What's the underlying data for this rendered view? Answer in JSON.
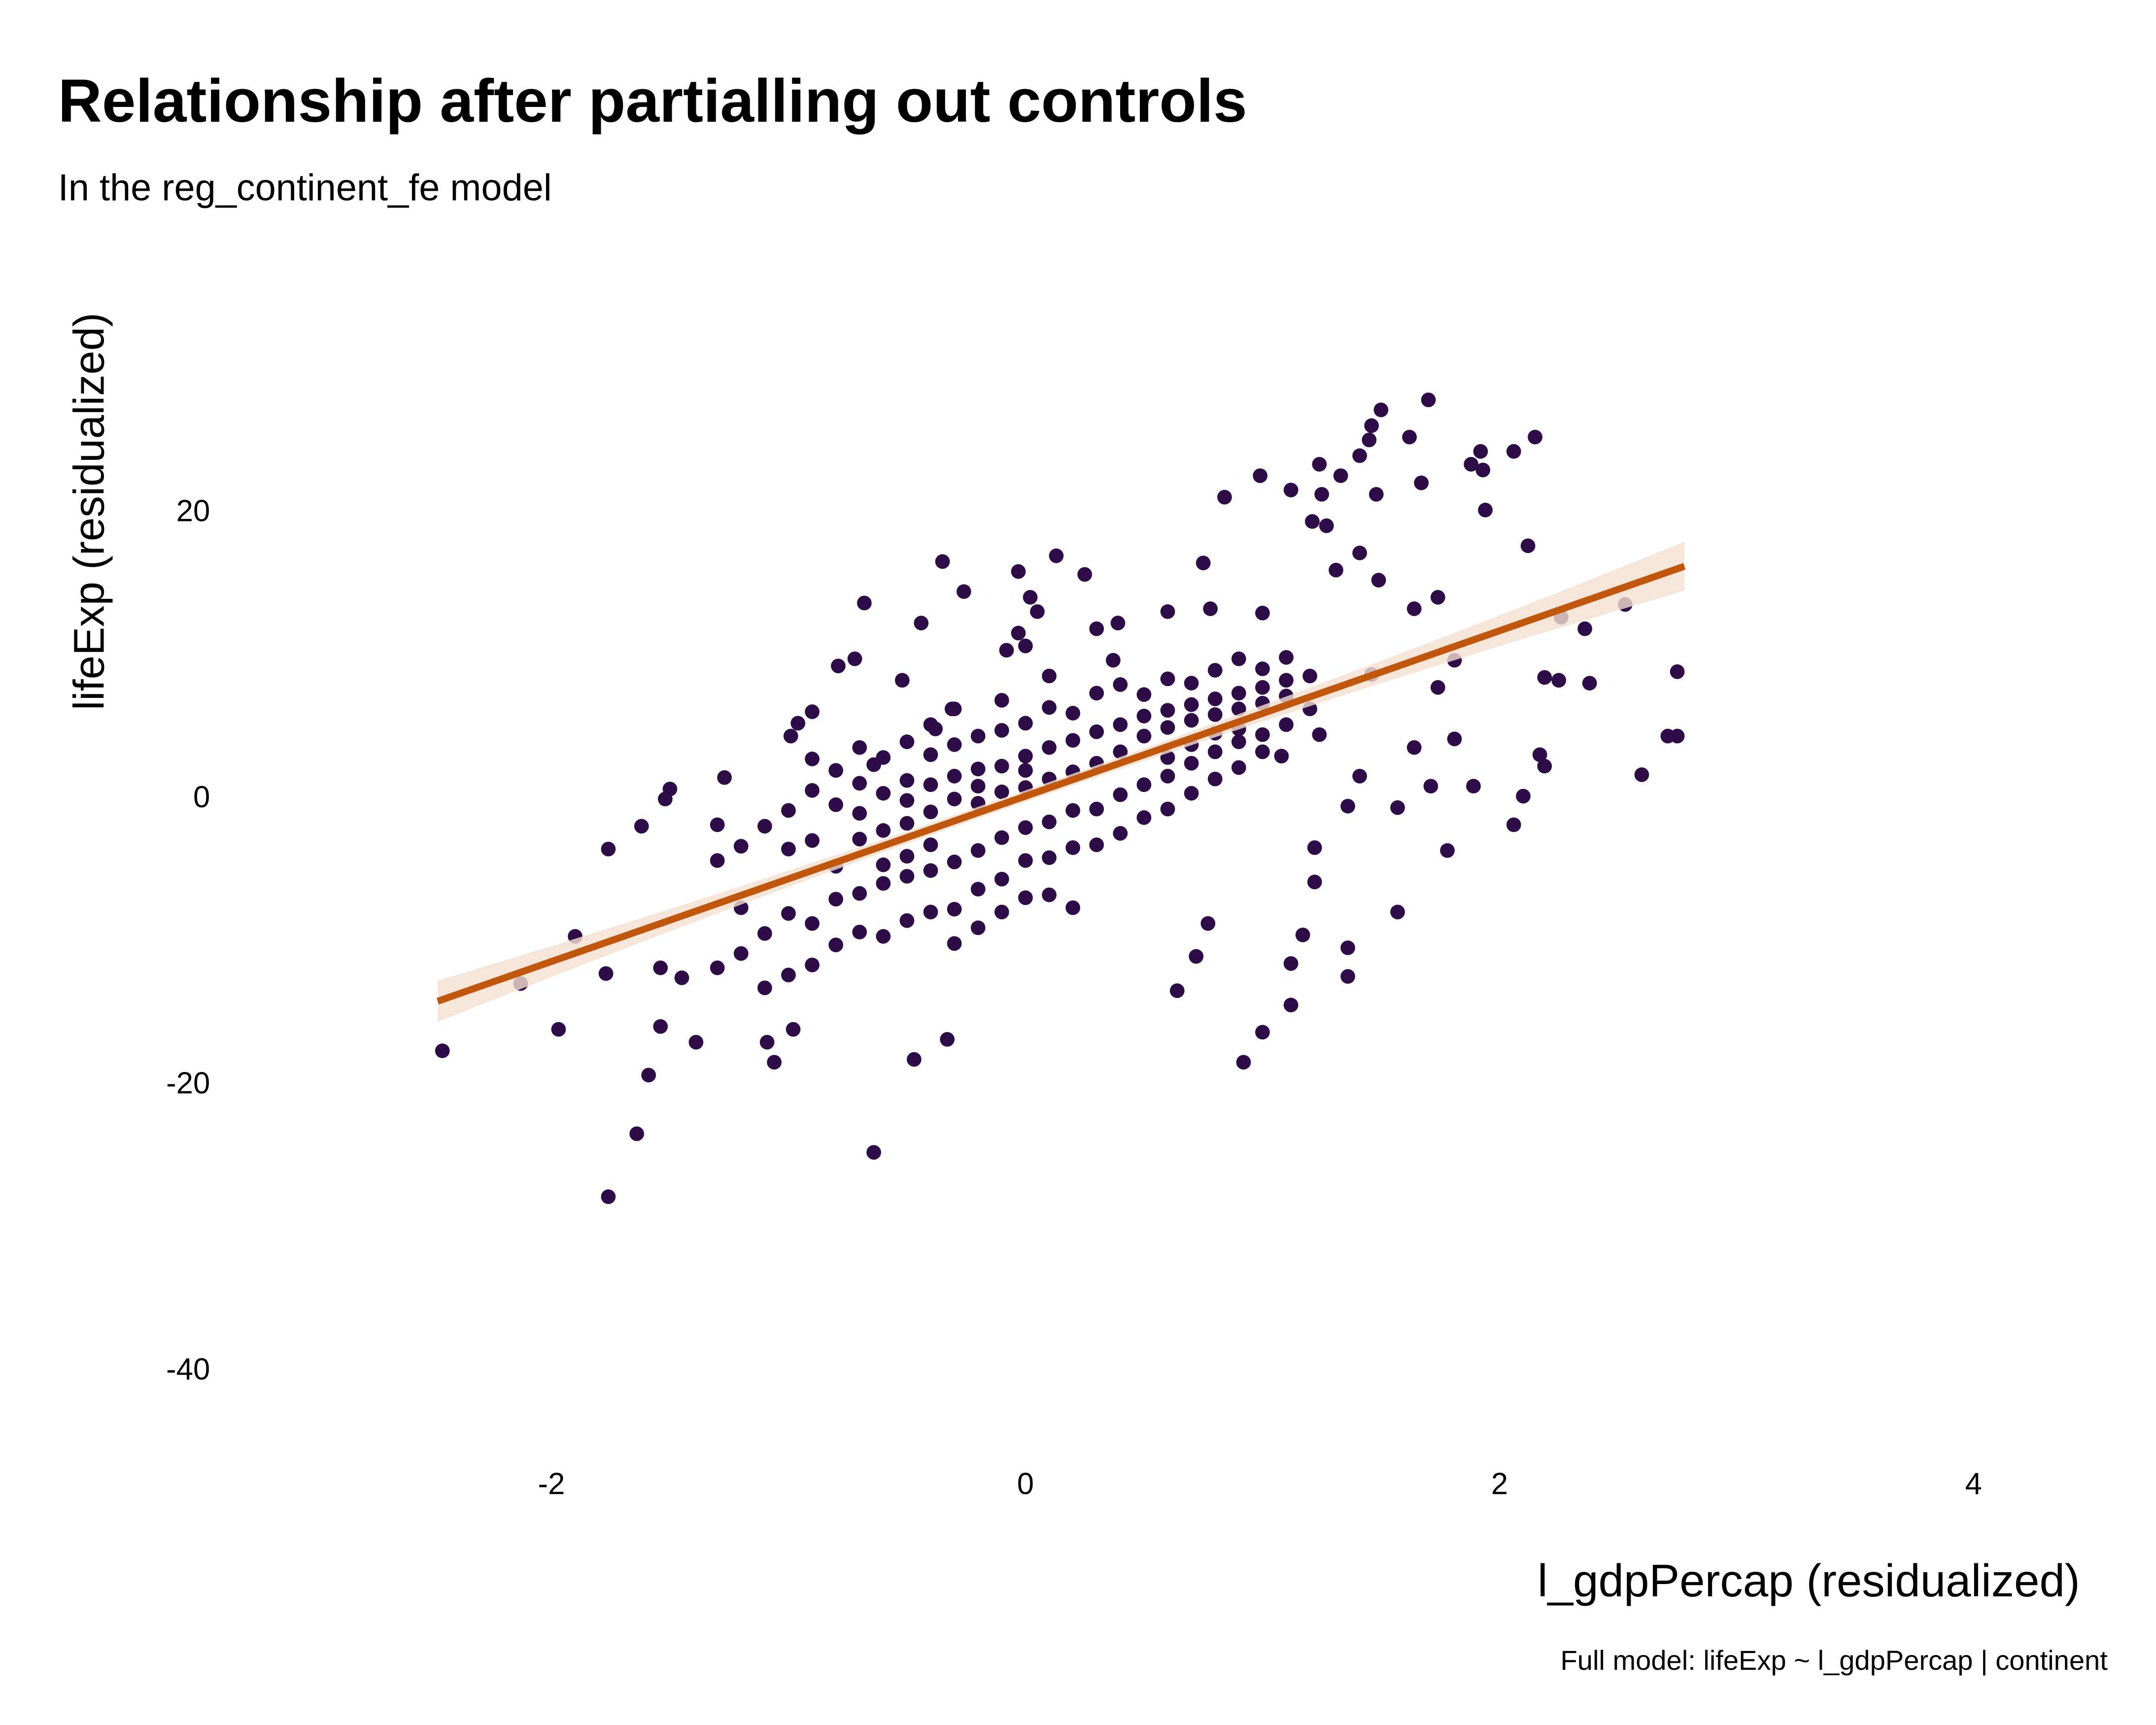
{
  "chart_data": {
    "type": "scatter",
    "title": "Relationship after partialling out controls",
    "subtitle": "In the reg_continent_fe model",
    "xlabel": "l_gdpPercap (residualized)",
    "ylabel": "lifeExp (residualized)",
    "caption": "Full model: lifeExp ~ l_gdpPercap | continent",
    "xlim": [
      -3.0,
      4.5
    ],
    "ylim": [
      -45,
      33
    ],
    "xticks": [
      -2,
      0,
      2,
      4
    ],
    "xtick_labels": [
      "-2",
      "0",
      "2",
      "4"
    ],
    "yticks": [
      20,
      0,
      -20,
      -40
    ],
    "ytick_labels": [
      "20",
      "0",
      "-20",
      "-40"
    ],
    "grid": false,
    "colors": {
      "points": "#2e0c47",
      "fit_line": "#c0570d",
      "ci_band": "#f4e0d0"
    },
    "fit": {
      "intercept": 0.0,
      "slope": 5.78,
      "x_range": [
        -2.48,
        2.78
      ]
    },
    "points": [
      [
        -2.46,
        -17.8
      ],
      [
        -2.13,
        -13.1
      ],
      [
        -1.97,
        -16.3
      ],
      [
        -1.9,
        -9.8
      ],
      [
        -1.76,
        -28.0
      ],
      [
        -1.76,
        -3.7
      ],
      [
        -1.77,
        -12.4
      ],
      [
        -1.64,
        -23.6
      ],
      [
        -1.59,
        -19.5
      ],
      [
        -1.62,
        -2.1
      ],
      [
        -1.54,
        -16.1
      ],
      [
        -1.52,
        -0.2
      ],
      [
        -1.5,
        0.5
      ],
      [
        -1.54,
        -12.0
      ],
      [
        -1.45,
        -12.7
      ],
      [
        -1.39,
        -17.2
      ],
      [
        -1.27,
        1.3
      ],
      [
        -0.64,
        -24.9
      ],
      [
        -0.47,
        -18.4
      ],
      [
        -0.33,
        -17.0
      ],
      [
        -1.06,
        -18.6
      ],
      [
        -1.09,
        -17.2
      ],
      [
        -0.98,
        -16.3
      ],
      [
        -0.68,
        13.5
      ],
      [
        -0.35,
        16.4
      ],
      [
        -0.03,
        15.7
      ],
      [
        0.13,
        16.8
      ],
      [
        0.25,
        15.5
      ],
      [
        -0.26,
        14.3
      ],
      [
        0.84,
        20.9
      ],
      [
        0.99,
        22.4
      ],
      [
        1.46,
        25.9
      ],
      [
        1.5,
        27.0
      ],
      [
        1.7,
        27.7
      ],
      [
        1.62,
        25.1
      ],
      [
        1.67,
        21.9
      ],
      [
        1.88,
        23.2
      ],
      [
        1.92,
        24.1
      ],
      [
        1.93,
        22.8
      ],
      [
        1.94,
        20.0
      ],
      [
        2.06,
        24.1
      ],
      [
        2.15,
        25.1
      ],
      [
        2.12,
        17.5
      ],
      [
        1.21,
        19.2
      ],
      [
        1.27,
        18.9
      ],
      [
        1.25,
        21.1
      ],
      [
        1.12,
        21.4
      ],
      [
        1.24,
        23.2
      ],
      [
        1.33,
        22.4
      ],
      [
        1.41,
        23.8
      ],
      [
        1.45,
        24.9
      ],
      [
        1.48,
        21.1
      ],
      [
        2.53,
        13.4
      ],
      [
        2.36,
        11.7
      ],
      [
        2.26,
        12.5
      ],
      [
        2.19,
        8.3
      ],
      [
        2.25,
        8.1
      ],
      [
        2.38,
        7.9
      ],
      [
        2.75,
        8.7
      ],
      [
        2.71,
        4.2
      ],
      [
        2.75,
        4.2
      ],
      [
        2.6,
        1.5
      ],
      [
        2.17,
        2.9
      ],
      [
        2.19,
        2.1
      ],
      [
        2.1,
        0.0
      ],
      [
        2.06,
        -2.0
      ],
      [
        1.89,
        0.7
      ],
      [
        1.71,
        0.7
      ],
      [
        1.78,
        -3.8
      ],
      [
        1.57,
        -0.8
      ],
      [
        1.57,
        -8.1
      ],
      [
        1.64,
        3.4
      ],
      [
        1.81,
        4.0
      ],
      [
        1.36,
        -0.7
      ],
      [
        1.41,
        1.4
      ],
      [
        1.46,
        8.5
      ],
      [
        1.36,
        -12.6
      ],
      [
        1.36,
        -10.6
      ],
      [
        1.17,
        -9.7
      ],
      [
        1.12,
        -11.7
      ],
      [
        1.12,
        -14.6
      ],
      [
        1.0,
        -16.5
      ],
      [
        0.92,
        -18.6
      ],
      [
        0.72,
        -11.2
      ],
      [
        0.64,
        -13.6
      ],
      [
        0.77,
        -8.9
      ],
      [
        1.22,
        -6.0
      ],
      [
        1.22,
        -3.6
      ],
      [
        1.08,
        2.8
      ],
      [
        1.24,
        4.3
      ],
      [
        1.74,
        7.6
      ],
      [
        1.81,
        9.5
      ],
      [
        1.74,
        13.9
      ],
      [
        1.64,
        13.1
      ],
      [
        1.31,
        15.8
      ],
      [
        1.41,
        17.0
      ],
      [
        1.49,
        15.1
      ],
      [
        0.75,
        16.3
      ],
      [
        0.78,
        13.1
      ],
      [
        1.0,
        12.8
      ],
      [
        0.6,
        12.9
      ],
      [
        0.39,
        12.1
      ],
      [
        0.37,
        9.5
      ],
      [
        0.3,
        11.7
      ],
      [
        0.0,
        10.5
      ],
      [
        -0.08,
        10.2
      ],
      [
        -0.03,
        11.4
      ],
      [
        0.02,
        13.9
      ],
      [
        0.05,
        12.9
      ],
      [
        -0.44,
        12.1
      ],
      [
        -0.52,
        8.1
      ],
      [
        -0.72,
        9.6
      ],
      [
        -0.79,
        9.1
      ],
      [
        -0.9,
        5.9
      ],
      [
        -0.99,
        4.2
      ],
      [
        -0.96,
        5.1
      ],
      [
        -0.64,
        2.2
      ],
      [
        -0.38,
        4.7
      ],
      [
        -0.31,
        6.1
      ],
      [
        -1.3,
        -4.5
      ],
      [
        -1.3,
        -12.0
      ],
      [
        -1.3,
        -2.0
      ],
      [
        -1.2,
        -11.0
      ],
      [
        -1.2,
        -3.5
      ],
      [
        -1.2,
        -7.8
      ],
      [
        -1.1,
        -2.1
      ],
      [
        -1.1,
        -9.6
      ],
      [
        -1.1,
        -13.4
      ],
      [
        -1.0,
        -1.0
      ],
      [
        -1.0,
        -8.2
      ],
      [
        -1.0,
        -12.5
      ],
      [
        -1.0,
        -3.7
      ],
      [
        -0.9,
        0.4
      ],
      [
        -0.9,
        -8.9
      ],
      [
        -0.9,
        -3.1
      ],
      [
        -0.9,
        -11.8
      ],
      [
        -0.9,
        2.6
      ],
      [
        -0.8,
        -0.6
      ],
      [
        -0.8,
        -7.2
      ],
      [
        -0.8,
        -10.4
      ],
      [
        -0.8,
        1.8
      ],
      [
        -0.8,
        -4.9
      ],
      [
        -0.7,
        -1.2
      ],
      [
        -0.7,
        -6.8
      ],
      [
        -0.7,
        3.4
      ],
      [
        -0.7,
        -9.5
      ],
      [
        -0.7,
        -3.0
      ],
      [
        -0.7,
        0.9
      ],
      [
        -0.6,
        -6.1
      ],
      [
        -0.6,
        0.2
      ],
      [
        -0.6,
        -9.8
      ],
      [
        -0.6,
        2.7
      ],
      [
        -0.6,
        -2.4
      ],
      [
        -0.6,
        -4.8
      ],
      [
        -0.5,
        -0.3
      ],
      [
        -0.5,
        -5.6
      ],
      [
        -0.5,
        3.8
      ],
      [
        -0.5,
        -8.7
      ],
      [
        -0.5,
        -1.9
      ],
      [
        -0.5,
        1.1
      ],
      [
        -0.5,
        -4.2
      ],
      [
        -0.4,
        0.8
      ],
      [
        -0.4,
        -5.2
      ],
      [
        -0.4,
        -8.1
      ],
      [
        -0.4,
        2.9
      ],
      [
        -0.4,
        -3.4
      ],
      [
        -0.4,
        5.0
      ],
      [
        -0.4,
        -1.1
      ],
      [
        -0.3,
        -4.6
      ],
      [
        -0.3,
        1.4
      ],
      [
        -0.3,
        -7.9
      ],
      [
        -0.3,
        3.6
      ],
      [
        -0.3,
        -0.2
      ],
      [
        -0.3,
        -10.3
      ],
      [
        -0.3,
        6.1
      ],
      [
        -0.2,
        1.9
      ],
      [
        -0.2,
        -3.8
      ],
      [
        -0.2,
        -6.5
      ],
      [
        -0.2,
        4.2
      ],
      [
        -0.2,
        -0.5
      ],
      [
        -0.2,
        -9.2
      ],
      [
        -0.2,
        0.7
      ],
      [
        -0.1,
        2.1
      ],
      [
        -0.1,
        -2.9
      ],
      [
        -0.1,
        -5.8
      ],
      [
        -0.1,
        4.6
      ],
      [
        -0.1,
        0.3
      ],
      [
        -0.1,
        -8.1
      ],
      [
        -0.1,
        6.7
      ],
      [
        0.0,
        2.8
      ],
      [
        0.0,
        -2.2
      ],
      [
        0.0,
        5.1
      ],
      [
        0.0,
        -4.5
      ],
      [
        0.0,
        0.6
      ],
      [
        0.0,
        -7.1
      ],
      [
        0.0,
        1.8
      ],
      [
        0.1,
        3.4
      ],
      [
        0.1,
        -1.8
      ],
      [
        0.1,
        6.2
      ],
      [
        0.1,
        -4.3
      ],
      [
        0.1,
        1.2
      ],
      [
        0.1,
        -6.9
      ],
      [
        0.1,
        8.4
      ],
      [
        0.2,
        3.9
      ],
      [
        0.2,
        -1.0
      ],
      [
        0.2,
        5.8
      ],
      [
        0.2,
        -3.6
      ],
      [
        0.2,
        1.7
      ],
      [
        0.2,
        -7.8
      ],
      [
        0.3,
        4.5
      ],
      [
        0.3,
        -0.9
      ],
      [
        0.3,
        7.2
      ],
      [
        0.3,
        -3.4
      ],
      [
        0.3,
        2.3
      ],
      [
        0.4,
        5.0
      ],
      [
        0.4,
        0.1
      ],
      [
        0.4,
        7.8
      ],
      [
        0.4,
        -2.6
      ],
      [
        0.4,
        3.1
      ],
      [
        0.5,
        5.6
      ],
      [
        0.5,
        0.8
      ],
      [
        0.5,
        7.1
      ],
      [
        0.5,
        -1.5
      ],
      [
        0.5,
        4.2
      ],
      [
        0.6,
        6.0
      ],
      [
        0.6,
        1.4
      ],
      [
        0.6,
        4.8
      ],
      [
        0.6,
        -0.9
      ],
      [
        0.6,
        8.2
      ],
      [
        0.6,
        2.7
      ],
      [
        0.7,
        6.4
      ],
      [
        0.7,
        2.3
      ],
      [
        0.7,
        5.3
      ],
      [
        0.7,
        0.2
      ],
      [
        0.7,
        7.9
      ],
      [
        0.7,
        3.6
      ],
      [
        0.8,
        6.8
      ],
      [
        0.8,
        3.1
      ],
      [
        0.8,
        5.7
      ],
      [
        0.8,
        1.2
      ],
      [
        0.8,
        8.8
      ],
      [
        0.8,
        4.4
      ],
      [
        0.9,
        7.2
      ],
      [
        0.9,
        3.8
      ],
      [
        0.9,
        6.1
      ],
      [
        0.9,
        2.0
      ],
      [
        0.9,
        9.6
      ],
      [
        0.9,
        4.7
      ],
      [
        1.0,
        7.6
      ],
      [
        1.0,
        4.3
      ],
      [
        1.0,
        6.5
      ],
      [
        1.0,
        8.9
      ],
      [
        1.0,
        3.1
      ],
      [
        1.1,
        8.1
      ],
      [
        1.1,
        5.0
      ],
      [
        1.1,
        7.0
      ],
      [
        1.1,
        9.7
      ],
      [
        1.2,
        8.4
      ],
      [
        1.2,
        6.1
      ]
    ]
  }
}
